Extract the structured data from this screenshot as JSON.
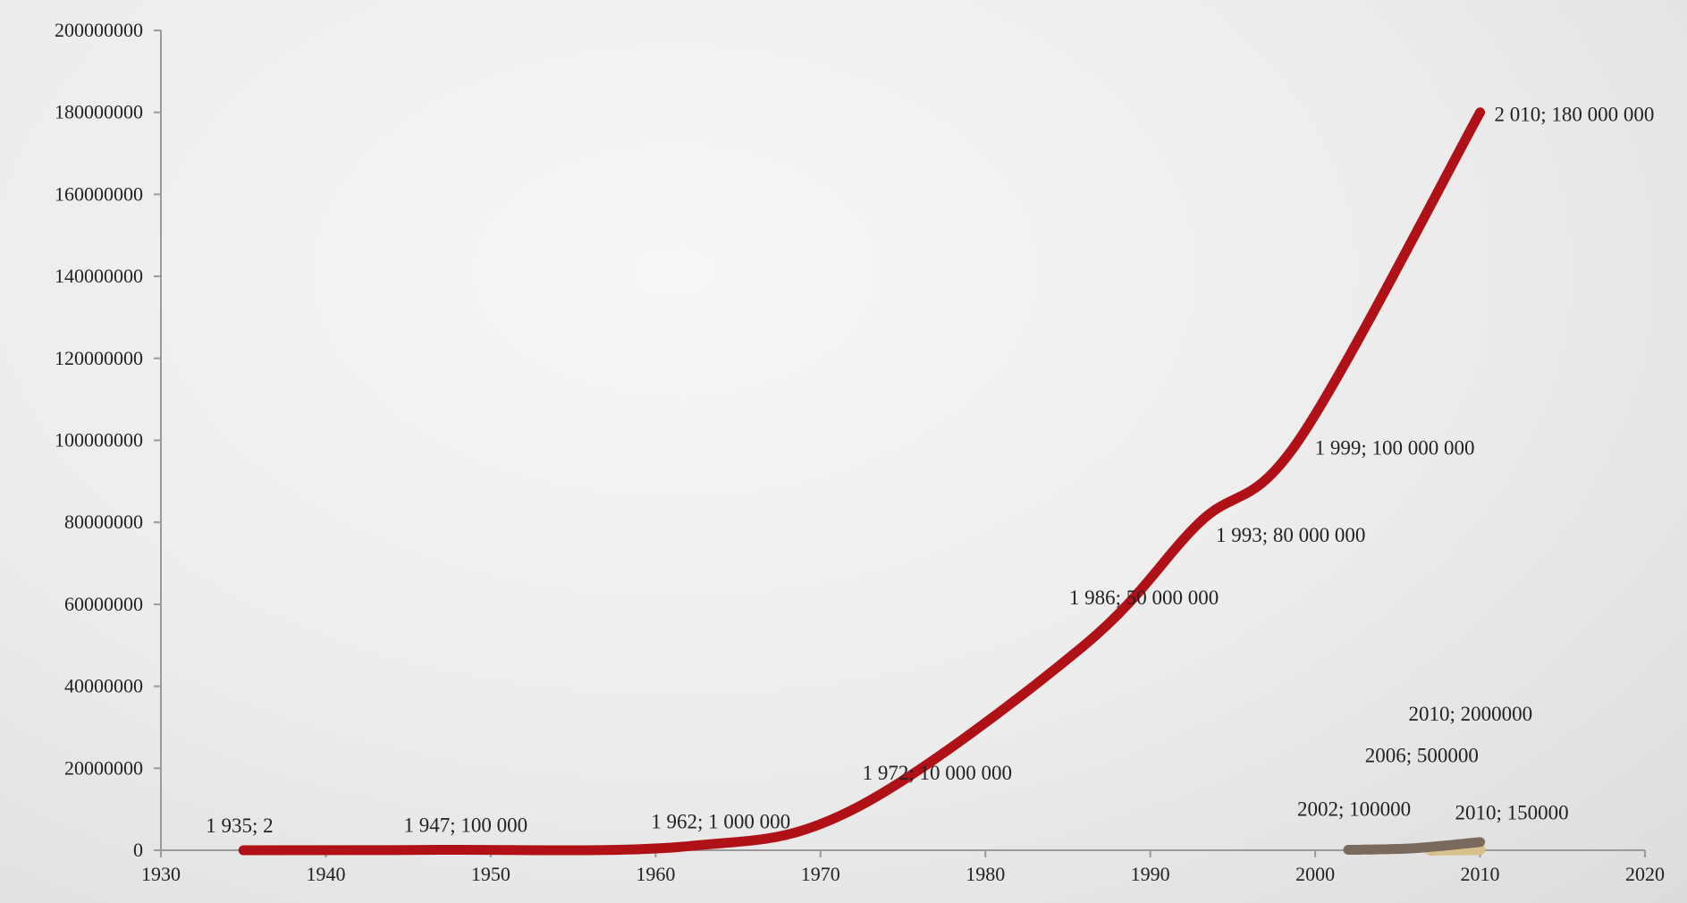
{
  "chart_data": {
    "type": "line",
    "title": "",
    "xlabel": "",
    "ylabel": "",
    "xlim": [
      1930,
      2020
    ],
    "ylim": [
      0,
      200000000
    ],
    "x_ticks": [
      "1930",
      "1940",
      "1950",
      "1960",
      "1970",
      "1980",
      "1990",
      "2000",
      "2010",
      "2020"
    ],
    "y_ticks": [
      "0",
      "20000000",
      "40000000",
      "60000000",
      "80000000",
      "100000000",
      "120000000",
      "140000000",
      "160000000",
      "180000000",
      "200000000"
    ],
    "grid": false,
    "legend": "none",
    "series": [
      {
        "color": "#b01116",
        "points": [
          {
            "x": 1935,
            "y": 2,
            "label": "1 935; 2"
          },
          {
            "x": 1947,
            "y": 100000,
            "label": "1 947; 100 000"
          },
          {
            "x": 1962,
            "y": 1000000,
            "label": "1 962; 1 000 000"
          },
          {
            "x": 1972,
            "y": 10000000,
            "label": "1 972; 10 000 000"
          },
          {
            "x": 1986,
            "y": 50000000,
            "label": "1 986; 50 000 000"
          },
          {
            "x": 1993,
            "y": 80000000,
            "label": "1 993; 80 000 000"
          },
          {
            "x": 1999,
            "y": 100000000,
            "label": "1 999; 100 000 000"
          },
          {
            "x": 2010,
            "y": 180000000,
            "label": "2 010; 180 000 000"
          }
        ]
      },
      {
        "color": "#7a6a5e",
        "points": [
          {
            "x": 2002,
            "y": 100000,
            "label": "2002; 100000"
          },
          {
            "x": 2006,
            "y": 500000,
            "label": "2006; 500000"
          },
          {
            "x": 2010,
            "y": 2000000,
            "label": "2010; 2000000"
          }
        ]
      },
      {
        "color": "#d8bf8c",
        "points": [
          {
            "x": 2007,
            "y": 0,
            "label": ""
          },
          {
            "x": 2010,
            "y": 150000,
            "label": "2010; 150000"
          }
        ]
      }
    ]
  }
}
